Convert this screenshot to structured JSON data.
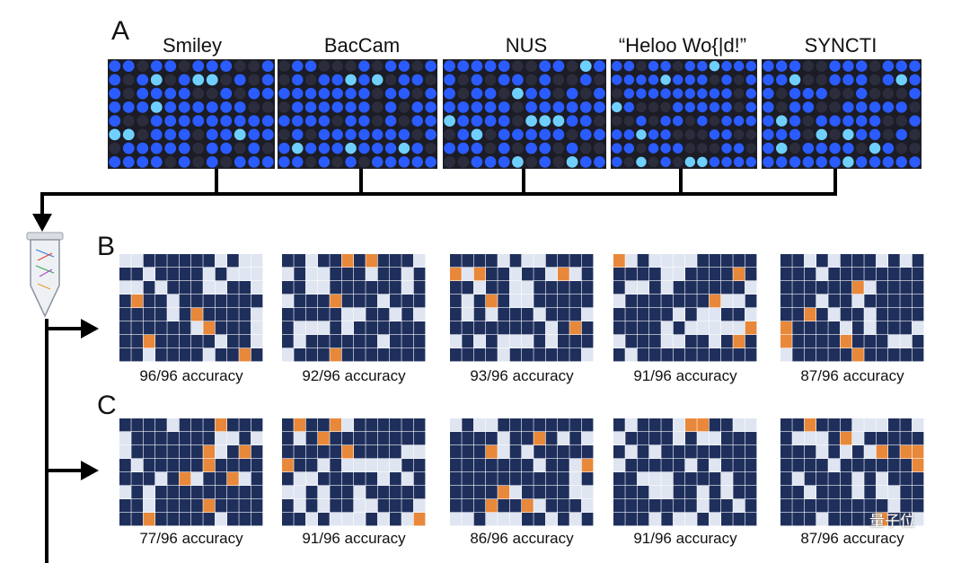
{
  "panel_a": {
    "letter": "A",
    "images": [
      {
        "title": "Smiley"
      },
      {
        "title": "BacCam"
      },
      {
        "title": "NUS"
      },
      {
        "title": "“Heloo Wo{|d!”"
      },
      {
        "title": "SYNCTI"
      }
    ]
  },
  "panel_b": {
    "letter": "B",
    "results": [
      {
        "accuracy": "96/96 accuracy"
      },
      {
        "accuracy": "92/96 accuracy"
      },
      {
        "accuracy": "93/96 accuracy"
      },
      {
        "accuracy": "91/96 accuracy"
      },
      {
        "accuracy": "87/96 accuracy"
      }
    ]
  },
  "panel_c": {
    "letter": "C",
    "results": [
      {
        "accuracy": "77/96 accuracy"
      },
      {
        "accuracy": "91/96 accuracy"
      },
      {
        "accuracy": "86/96 accuracy"
      },
      {
        "accuracy": "91/96 accuracy"
      },
      {
        "accuracy": "87/96 accuracy"
      }
    ]
  },
  "watermark": "量子位",
  "colors": {
    "on_cell": "#1f2f5c",
    "off_cell": "#dfe5f1",
    "error_cell": "#e8883a",
    "well_blue": "#2a5cff",
    "well_cyan": "#6fd0ff",
    "well_dark": "#2b2d3c",
    "line": "#000000"
  }
}
